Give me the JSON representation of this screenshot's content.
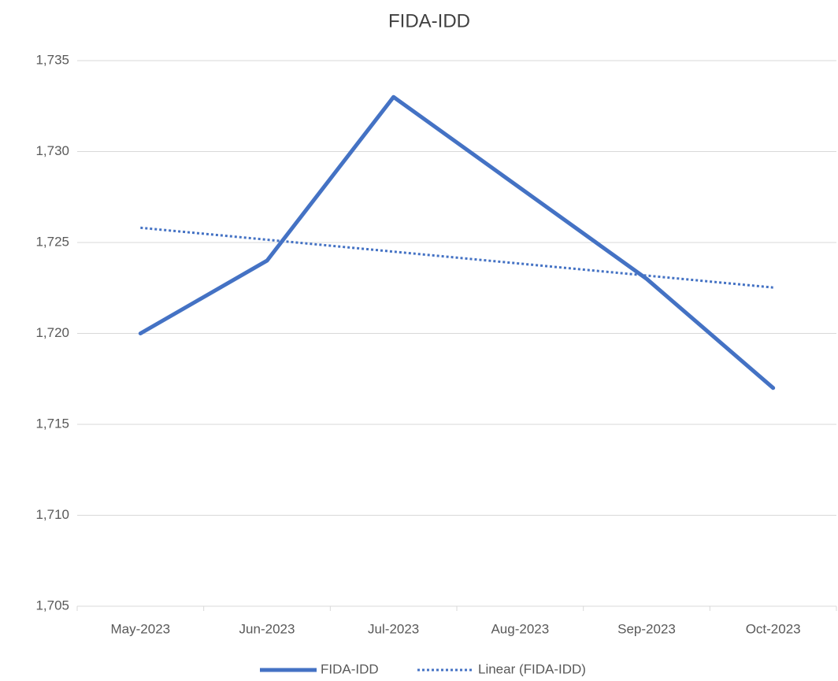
{
  "chart_data": {
    "type": "line",
    "title": "FIDA-IDD",
    "categories": [
      "May-2023",
      "Jun-2023",
      "Jul-2023",
      "Aug-2023",
      "Sep-2023",
      "Oct-2023"
    ],
    "series": [
      {
        "name": "FIDA-IDD",
        "color": "#4472c4",
        "values": [
          1720,
          1724,
          1733,
          1728,
          1723,
          1717
        ]
      }
    ],
    "trendline": {
      "name": "Linear (FIDA-IDD)",
      "type": "linear",
      "color": "#4472c4"
    },
    "ylim": [
      1705,
      1735
    ],
    "yticks": [
      {
        "value": 1705,
        "label": "1,705"
      },
      {
        "value": 1710,
        "label": "1,710"
      },
      {
        "value": 1715,
        "label": "1,715"
      },
      {
        "value": 1720,
        "label": "1,720"
      },
      {
        "value": 1725,
        "label": "1,725"
      },
      {
        "value": 1730,
        "label": "1,730"
      },
      {
        "value": 1735,
        "label": "1,735"
      }
    ],
    "grid": true,
    "legend": "bottom"
  }
}
